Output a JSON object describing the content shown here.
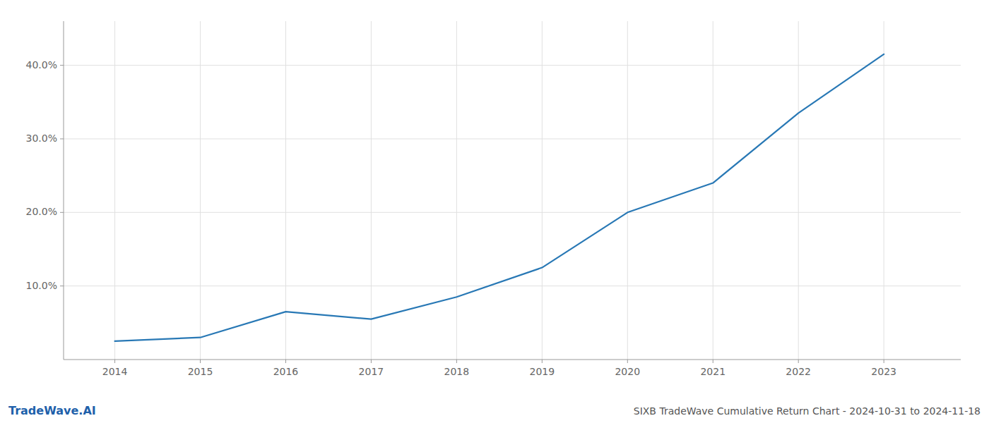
{
  "chart_data": {
    "type": "line",
    "title": "SIXB TradeWave Cumulative Return Chart - 2024-10-31 to 2024-11-18",
    "annotations": [
      "TradeWave.AI"
    ],
    "x": [
      2014,
      2015,
      2016,
      2017,
      2018,
      2019,
      2020,
      2021,
      2022,
      2023
    ],
    "values": [
      2.5,
      3.0,
      6.5,
      5.5,
      8.5,
      12.5,
      20.0,
      24.0,
      33.5,
      41.5
    ],
    "color": "#2878b5",
    "xlim": [
      2013.4,
      2023.9
    ],
    "xticks": [
      2014,
      2015,
      2016,
      2017,
      2018,
      2019,
      2020,
      2021,
      2022,
      2023
    ],
    "ylim": [
      0,
      46
    ],
    "yticks": [
      {
        "value": 10,
        "label": "10.0%"
      },
      {
        "value": 20,
        "label": "20.0%"
      },
      {
        "value": 30,
        "label": "30.0%"
      },
      {
        "value": 40,
        "label": "40.0%"
      }
    ],
    "grid": true
  }
}
